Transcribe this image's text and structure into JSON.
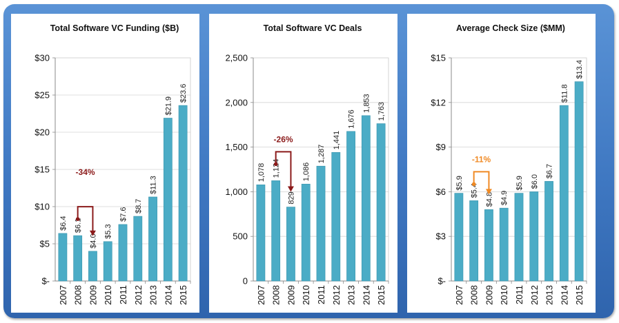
{
  "chart_data": [
    {
      "type": "bar",
      "title": "Total Software VC Funding ($B)",
      "categories": [
        "2007",
        "2008",
        "2009",
        "2010",
        "2011",
        "2012",
        "2013",
        "2014",
        "2015"
      ],
      "values": [
        6.4,
        6.1,
        4.0,
        5.3,
        7.6,
        8.7,
        11.3,
        21.9,
        23.6
      ],
      "data_labels": [
        "$6.4",
        "$6.1",
        "$4.0",
        "$5.3",
        "$7.6",
        "$8.7",
        "$11.3",
        "$21.9",
        "$23.6"
      ],
      "ylim": [
        0,
        30
      ],
      "yticks": [
        0,
        5,
        10,
        15,
        20,
        25,
        30
      ],
      "ytick_labels": [
        "$-",
        "$5",
        "$10",
        "$15",
        "$20",
        "$25",
        "$30"
      ],
      "grid": true,
      "bar_color": "#4bacc6",
      "annotation": {
        "text": "-34%",
        "from_index": 1,
        "to_index": 2,
        "color": "#8b1a1a"
      }
    },
    {
      "type": "bar",
      "title": "Total Software VC Deals",
      "categories": [
        "2007",
        "2008",
        "2009",
        "2010",
        "2011",
        "2012",
        "2013",
        "2014",
        "2015"
      ],
      "values": [
        1078,
        1124,
        829,
        1086,
        1287,
        1441,
        1676,
        1853,
        1763
      ],
      "data_labels": [
        "1,078",
        "1,124",
        "829",
        "1,086",
        "1,287",
        "1,441",
        "1,676",
        "1,853",
        "1,763"
      ],
      "ylim": [
        0,
        2500
      ],
      "yticks": [
        0,
        500,
        1000,
        1500,
        2000,
        2500
      ],
      "ytick_labels": [
        "0",
        "500",
        "1,000",
        "1,500",
        "2,000",
        "2,500"
      ],
      "grid": true,
      "bar_color": "#4bacc6",
      "annotation": {
        "text": "-26%",
        "from_index": 1,
        "to_index": 2,
        "color": "#8b1a1a"
      }
    },
    {
      "type": "bar",
      "title": "Average Check Size ($MM)",
      "categories": [
        "2007",
        "2008",
        "2009",
        "2010",
        "2011",
        "2012",
        "2013",
        "2014",
        "2015"
      ],
      "values": [
        5.9,
        5.4,
        4.8,
        4.9,
        5.9,
        6.0,
        6.7,
        11.8,
        13.4
      ],
      "data_labels": [
        "$5.9",
        "$5.4",
        "$4.8",
        "$4.9",
        "$5.9",
        "$6.0",
        "$6.7",
        "$11.8",
        "$13.4"
      ],
      "ylim": [
        0,
        15
      ],
      "yticks": [
        0,
        3,
        6,
        9,
        12,
        15
      ],
      "ytick_labels": [
        "$-",
        "$3",
        "$6",
        "$9",
        "$12",
        "$15"
      ],
      "grid": true,
      "bar_color": "#4bacc6",
      "annotation": {
        "text": "-11%",
        "from_index": 1,
        "to_index": 2,
        "color": "#f08a24"
      }
    }
  ]
}
